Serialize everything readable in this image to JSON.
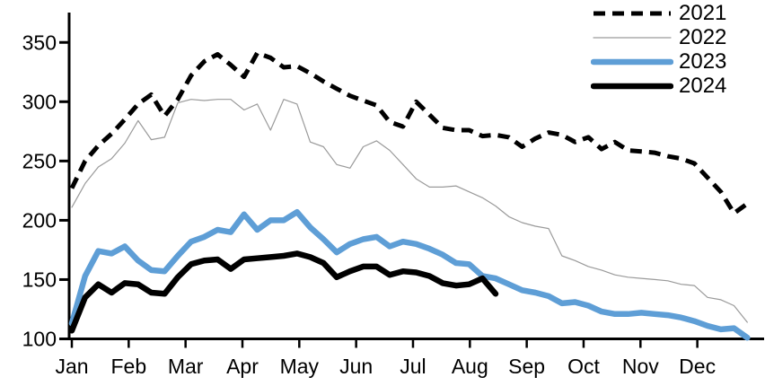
{
  "chart_data": {
    "type": "line",
    "title": "",
    "x_axis": {
      "labels": [
        "Jan",
        "Feb",
        "Mar",
        "Apr",
        "May",
        "Jun",
        "Jul",
        "Aug",
        "Sep",
        "Oct",
        "Nov",
        "Dec"
      ],
      "unit": "week-of-year"
    },
    "y_axis": {
      "min": 100,
      "max": 350,
      "ticks": [
        100,
        150,
        200,
        250,
        300,
        350
      ]
    },
    "grid": "off",
    "legend_position": "top-right",
    "series": [
      {
        "name": "2021",
        "color": "#000000",
        "style": "dashed",
        "stroke_width": 5,
        "dash": "13 8",
        "values": [
          227,
          250,
          263,
          273,
          285,
          298,
          306,
          288,
          302,
          322,
          334,
          340,
          331,
          321,
          341,
          337,
          329,
          330,
          324,
          317,
          311,
          305,
          301,
          297,
          283,
          279,
          300,
          289,
          278,
          276,
          276,
          271,
          272,
          270,
          262,
          269,
          274,
          272,
          266,
          270,
          260,
          266,
          259,
          258,
          257,
          254,
          252,
          248,
          236,
          224,
          206,
          214
        ]
      },
      {
        "name": "2022",
        "color": "#9A9A9A",
        "style": "solid-thin",
        "stroke_width": 1.2,
        "dash": "",
        "values": [
          211,
          231,
          245,
          252,
          265,
          284,
          268,
          270,
          299,
          302,
          301,
          302,
          302,
          293,
          298,
          276,
          302,
          298,
          266,
          262,
          247,
          244,
          262,
          267,
          259,
          247,
          235,
          228,
          228,
          229,
          224,
          219,
          212,
          203,
          198,
          195,
          193,
          170,
          166,
          161,
          158,
          154,
          152,
          151,
          150,
          149,
          146,
          145,
          135,
          133,
          128,
          114
        ]
      },
      {
        "name": "2023",
        "color": "#5E9ED6",
        "style": "solid-thick",
        "stroke_width": 6.5,
        "dash": "",
        "values": [
          113,
          153,
          174,
          172,
          178,
          166,
          158,
          157,
          170,
          182,
          186,
          192,
          190,
          205,
          192,
          200,
          200,
          207,
          194,
          184,
          173,
          180,
          184,
          186,
          178,
          182,
          180,
          176,
          171,
          164,
          163,
          153,
          151,
          146,
          141,
          139,
          136,
          130,
          131,
          128,
          123,
          121,
          121,
          122,
          121,
          120,
          118,
          115,
          111,
          108,
          109,
          101
        ]
      },
      {
        "name": "2024",
        "color": "#000000",
        "style": "solid-thick",
        "stroke_width": 6.5,
        "dash": "",
        "values": [
          107,
          135,
          146,
          139,
          147,
          146,
          139,
          138,
          152,
          163,
          166,
          167,
          159,
          167,
          168,
          169,
          170,
          172,
          169,
          164,
          152,
          157,
          161,
          161,
          154,
          157,
          156,
          153,
          147,
          145,
          146,
          151,
          138
        ]
      }
    ]
  }
}
